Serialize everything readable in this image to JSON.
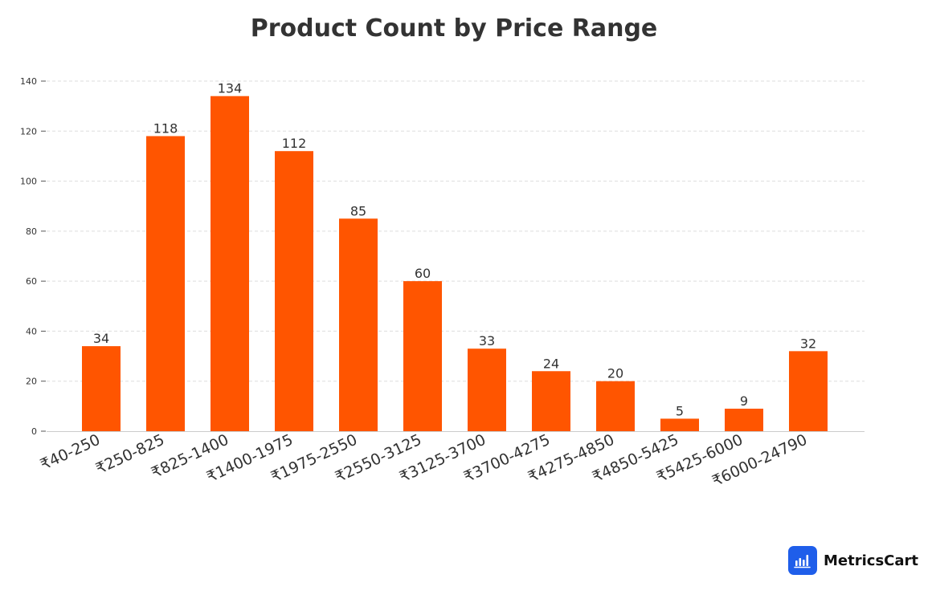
{
  "chart_data": {
    "type": "bar",
    "title": "Product Count by Price Range",
    "xlabel": "",
    "ylabel": "",
    "categories": [
      "₹40-250",
      "₹250-825",
      "₹825-1400",
      "₹1400-1975",
      "₹1975-2550",
      "₹2550-3125",
      "₹3125-3700",
      "₹3700-4275",
      "₹4275-4850",
      "₹4850-5425",
      "₹5425-6000",
      "₹6000-24790"
    ],
    "values": [
      34,
      118,
      134,
      112,
      85,
      60,
      33,
      24,
      20,
      5,
      9,
      32
    ],
    "ylim": [
      0,
      140
    ],
    "yticks": [
      0,
      20,
      40,
      60,
      80,
      100,
      120,
      140
    ],
    "grid": true,
    "data_labels": true,
    "bar_color": "#ff5500"
  },
  "brand": {
    "name": "MetricsCart",
    "icon": "bar-chart-icon",
    "logo_color": "#1f5eea"
  }
}
